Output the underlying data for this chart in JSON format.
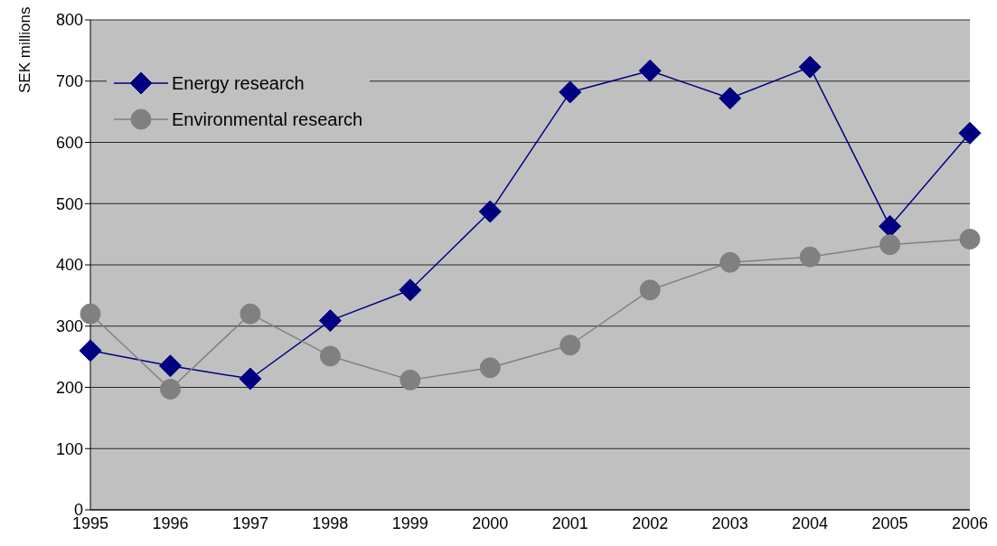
{
  "chart_data": {
    "type": "line",
    "ylabel": "SEK millions",
    "categories": [
      "1995",
      "1996",
      "1997",
      "1998",
      "1999",
      "2000",
      "2001",
      "2002",
      "2003",
      "2004",
      "2005",
      "2006"
    ],
    "series": [
      {
        "name": "Energy research",
        "color": "#000080",
        "marker": "diamond",
        "values": [
          260,
          235,
          214,
          309,
          359,
          487,
          682,
          717,
          672,
          723,
          463,
          615
        ]
      },
      {
        "name": "Environmental research",
        "color": "#808080",
        "marker": "circle",
        "values": [
          320,
          197,
          320,
          251,
          212,
          232,
          269,
          359,
          404,
          413,
          433,
          442
        ]
      }
    ],
    "ylim": [
      0,
      800
    ],
    "yticks": [
      0,
      100,
      200,
      300,
      400,
      500,
      600,
      700,
      800
    ],
    "grid": "y",
    "legend": "top left"
  }
}
